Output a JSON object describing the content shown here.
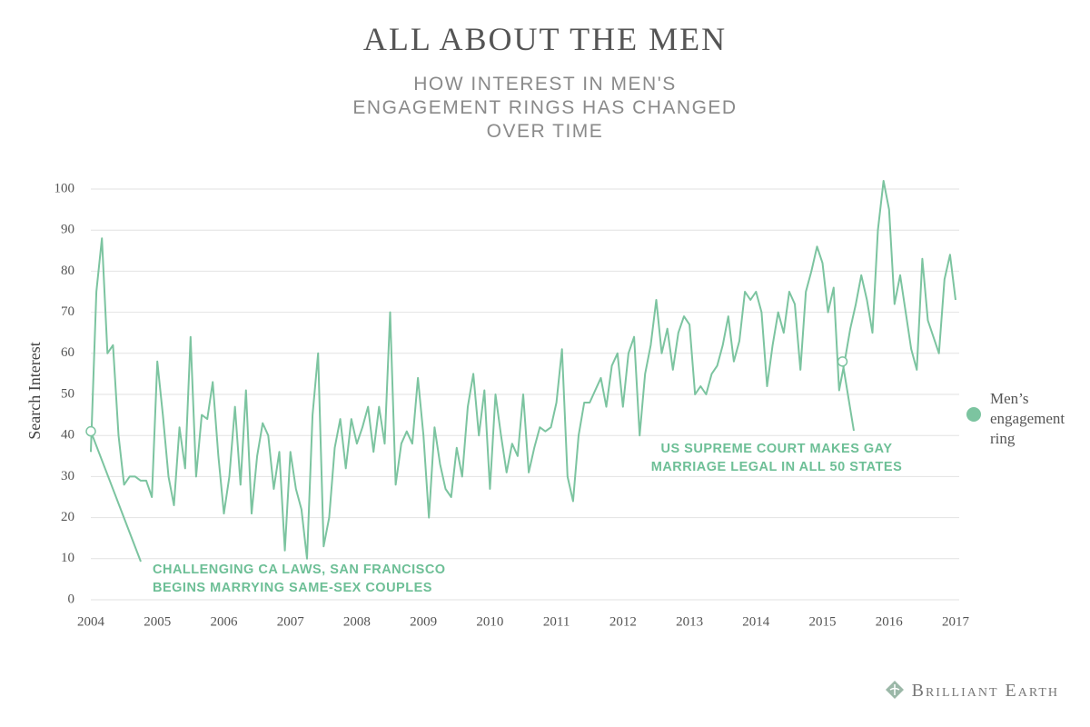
{
  "chart_data": {
    "type": "line",
    "title": "ALL ABOUT THE MEN",
    "subtitle": "HOW INTEREST IN MEN'S ENGAGEMENT RINGS HAS CHANGED OVER TIME",
    "y_label": "Search Interest",
    "xlim": [
      2004,
      2017
    ],
    "xticks": [
      2004,
      2005,
      2006,
      2007,
      2008,
      2009,
      2010,
      2011,
      2012,
      2013,
      2014,
      2015,
      2016,
      2017
    ],
    "ylim": [
      0,
      104
    ],
    "yticks": [
      0,
      10,
      20,
      30,
      40,
      50,
      60,
      70,
      80,
      90,
      100
    ],
    "grid": true,
    "legend": "right",
    "x": [
      2004,
      2004.083,
      2004.167,
      2004.25,
      2004.333,
      2004.417,
      2004.5,
      2004.583,
      2004.667,
      2004.75,
      2004.833,
      2004.917,
      2005,
      2005.083,
      2005.167,
      2005.25,
      2005.333,
      2005.417,
      2005.5,
      2005.583,
      2005.667,
      2005.75,
      2005.833,
      2005.917,
      2006,
      2006.083,
      2006.167,
      2006.25,
      2006.333,
      2006.417,
      2006.5,
      2006.583,
      2006.667,
      2006.75,
      2006.833,
      2006.917,
      2007,
      2007.083,
      2007.167,
      2007.25,
      2007.333,
      2007.417,
      2007.5,
      2007.583,
      2007.667,
      2007.75,
      2007.833,
      2007.917,
      2008,
      2008.083,
      2008.167,
      2008.25,
      2008.333,
      2008.417,
      2008.5,
      2008.583,
      2008.667,
      2008.75,
      2008.833,
      2008.917,
      2009,
      2009.083,
      2009.167,
      2009.25,
      2009.333,
      2009.417,
      2009.5,
      2009.583,
      2009.667,
      2009.75,
      2009.833,
      2009.917,
      2010,
      2010.083,
      2010.167,
      2010.25,
      2010.333,
      2010.417,
      2010.5,
      2010.583,
      2010.667,
      2010.75,
      2010.833,
      2010.917,
      2011,
      2011.083,
      2011.167,
      2011.25,
      2011.333,
      2011.417,
      2011.5,
      2011.583,
      2011.667,
      2011.75,
      2011.833,
      2011.917,
      2012,
      2012.083,
      2012.167,
      2012.25,
      2012.333,
      2012.417,
      2012.5,
      2012.583,
      2012.667,
      2012.75,
      2012.833,
      2012.917,
      2013,
      2013.083,
      2013.167,
      2013.25,
      2013.333,
      2013.417,
      2013.5,
      2013.583,
      2013.667,
      2013.75,
      2013.833,
      2013.917,
      2014,
      2014.083,
      2014.167,
      2014.25,
      2014.333,
      2014.417,
      2014.5,
      2014.583,
      2014.667,
      2014.75,
      2014.833,
      2014.917,
      2015,
      2015.083,
      2015.167,
      2015.25,
      2015.333,
      2015.417,
      2015.5,
      2015.583,
      2015.667,
      2015.75,
      2015.833,
      2015.917,
      2016,
      2016.083,
      2016.167,
      2016.25,
      2016.333,
      2016.417,
      2016.5,
      2016.583,
      2016.667,
      2016.75,
      2016.833,
      2016.917,
      2017
    ],
    "series": [
      {
        "name": "Men’s engagement ring",
        "color": "#7cc4a0",
        "values": [
          36,
          75,
          88,
          60,
          62,
          40,
          28,
          30,
          30,
          29,
          29,
          25,
          58,
          45,
          30,
          23,
          42,
          32,
          64,
          30,
          45,
          44,
          53,
          35,
          21,
          30,
          47,
          28,
          51,
          21,
          35,
          43,
          40,
          27,
          36,
          12,
          36,
          27,
          22,
          10,
          45,
          60,
          13,
          20,
          37,
          44,
          32,
          44,
          38,
          42,
          47,
          36,
          47,
          38,
          70,
          28,
          38,
          41,
          38,
          54,
          40,
          20,
          42,
          33,
          27,
          25,
          37,
          30,
          47,
          55,
          40,
          51,
          27,
          50,
          40,
          31,
          38,
          35,
          50,
          31,
          37,
          42,
          41,
          42,
          48,
          61,
          30,
          24,
          40,
          48,
          48,
          51,
          54,
          47,
          57,
          60,
          47,
          60,
          64,
          40,
          55,
          62,
          73,
          60,
          66,
          56,
          65,
          69,
          67,
          50,
          52,
          50,
          55,
          57,
          62,
          69,
          58,
          63,
          75,
          73,
          75,
          70,
          52,
          62,
          70,
          65,
          75,
          72,
          56,
          75,
          80,
          86,
          82,
          70,
          76,
          51,
          58,
          66,
          72,
          79,
          73,
          65,
          90,
          102,
          95,
          72,
          79,
          70,
          61,
          56,
          83,
          68,
          64,
          60,
          78,
          84,
          73
        ]
      }
    ],
    "annotations": [
      {
        "text": [
          "CHALLENGING CA LAWS, SAN FRANCISCO",
          "BEGINS MARRYING SAME-SEX COUPLES"
        ],
        "x": 2004.0,
        "y": 41
      },
      {
        "text": [
          "US SUPREME COURT MAKES GAY",
          "MARRIAGE LEGAL IN ALL 50 STATES"
        ],
        "x": 2015.3,
        "y": 58
      }
    ]
  },
  "brand": "Brilliant Earth"
}
